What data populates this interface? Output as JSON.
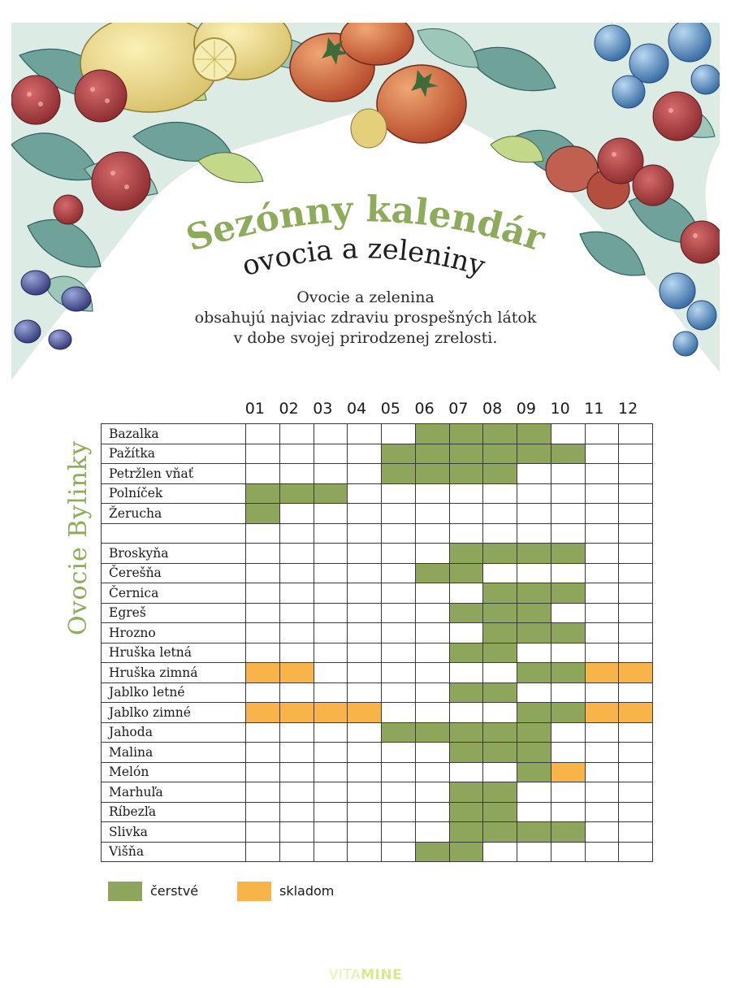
{
  "header": {
    "title_line1": "Sezónny kalendár",
    "title_line2": "ovocia a zeleniny",
    "intro": [
      "Ovocie a zelenina",
      "obsahujú najviac zdraviu prospešných látok",
      "v dobe svojej prirodzenej zrelosti."
    ]
  },
  "colors": {
    "fresh": "#8ea65c",
    "stored": "#f8b448",
    "accent_title": "#8eab5c"
  },
  "calendar": {
    "side_label": "Ovocie  Bylinky",
    "months": [
      "01",
      "02",
      "03",
      "04",
      "05",
      "06",
      "07",
      "08",
      "09",
      "10",
      "11",
      "12"
    ],
    "legend_codes": "f = čerstvé, s = skladom, 0 = prázdne",
    "rows": [
      {
        "name": "Bazalka",
        "months": [
          "0",
          "0",
          "0",
          "0",
          "0",
          "f",
          "f",
          "f",
          "f",
          "0",
          "0",
          "0"
        ]
      },
      {
        "name": "Pažítka",
        "months": [
          "0",
          "0",
          "0",
          "0",
          "f",
          "f",
          "f",
          "f",
          "f",
          "f",
          "0",
          "0"
        ]
      },
      {
        "name": "Petržlen vňať",
        "months": [
          "0",
          "0",
          "0",
          "0",
          "f",
          "f",
          "f",
          "f",
          "0",
          "0",
          "0",
          "0"
        ]
      },
      {
        "name": "Polníček",
        "months": [
          "f",
          "f",
          "f",
          "0",
          "0",
          "0",
          "0",
          "0",
          "0",
          "0",
          "0",
          "0"
        ]
      },
      {
        "name": "Žerucha",
        "months": [
          "f",
          "0",
          "0",
          "0",
          "0",
          "0",
          "0",
          "0",
          "0",
          "0",
          "0",
          "0"
        ]
      },
      {
        "name": "",
        "months": [
          "0",
          "0",
          "0",
          "0",
          "0",
          "0",
          "0",
          "0",
          "0",
          "0",
          "0",
          "0"
        ]
      },
      {
        "name": "Broskyňa",
        "months": [
          "0",
          "0",
          "0",
          "0",
          "0",
          "0",
          "f",
          "f",
          "f",
          "f",
          "0",
          "0"
        ]
      },
      {
        "name": "Čerešňa",
        "months": [
          "0",
          "0",
          "0",
          "0",
          "0",
          "f",
          "f",
          "0",
          "0",
          "0",
          "0",
          "0"
        ]
      },
      {
        "name": "Černica",
        "months": [
          "0",
          "0",
          "0",
          "0",
          "0",
          "0",
          "0",
          "f",
          "f",
          "f",
          "0",
          "0"
        ]
      },
      {
        "name": "Egreš",
        "months": [
          "0",
          "0",
          "0",
          "0",
          "0",
          "0",
          "f",
          "f",
          "f",
          "0",
          "0",
          "0"
        ]
      },
      {
        "name": "Hrozno",
        "months": [
          "0",
          "0",
          "0",
          "0",
          "0",
          "0",
          "0",
          "f",
          "f",
          "f",
          "0",
          "0"
        ]
      },
      {
        "name": "Hruška letná",
        "months": [
          "0",
          "0",
          "0",
          "0",
          "0",
          "0",
          "f",
          "f",
          "0",
          "0",
          "0",
          "0"
        ]
      },
      {
        "name": "Hruška zimná",
        "months": [
          "s",
          "s",
          "0",
          "0",
          "0",
          "0",
          "0",
          "0",
          "f",
          "f",
          "s",
          "s"
        ]
      },
      {
        "name": "Jablko letné",
        "months": [
          "0",
          "0",
          "0",
          "0",
          "0",
          "0",
          "f",
          "f",
          "0",
          "0",
          "0",
          "0"
        ]
      },
      {
        "name": "Jablko zimné",
        "months": [
          "s",
          "s",
          "s",
          "s",
          "0",
          "0",
          "0",
          "0",
          "f",
          "f",
          "s",
          "s"
        ]
      },
      {
        "name": "Jahoda",
        "months": [
          "0",
          "0",
          "0",
          "0",
          "f",
          "f",
          "f",
          "f",
          "f",
          "0",
          "0",
          "0"
        ]
      },
      {
        "name": "Malina",
        "months": [
          "0",
          "0",
          "0",
          "0",
          "0",
          "0",
          "f",
          "f",
          "f",
          "0",
          "0",
          "0"
        ]
      },
      {
        "name": "Melón",
        "months": [
          "0",
          "0",
          "0",
          "0",
          "0",
          "0",
          "0",
          "0",
          "f",
          "s",
          "0",
          "0"
        ]
      },
      {
        "name": "Marhuľa",
        "months": [
          "0",
          "0",
          "0",
          "0",
          "0",
          "0",
          "f",
          "f",
          "0",
          "0",
          "0",
          "0"
        ]
      },
      {
        "name": "Ríbezľa",
        "months": [
          "0",
          "0",
          "0",
          "0",
          "0",
          "0",
          "f",
          "f",
          "0",
          "0",
          "0",
          "0"
        ]
      },
      {
        "name": "Slivka",
        "months": [
          "0",
          "0",
          "0",
          "0",
          "0",
          "0",
          "f",
          "f",
          "f",
          "f",
          "0",
          "0"
        ]
      },
      {
        "name": "Višňa",
        "months": [
          "0",
          "0",
          "0",
          "0",
          "0",
          "f",
          "f",
          "0",
          "0",
          "0",
          "0",
          "0"
        ]
      }
    ]
  },
  "legend": {
    "fresh_label": "čerstvé",
    "stored_label": "skladom"
  },
  "footer": {
    "logo_part1": "VITA",
    "logo_part2": "MINE"
  }
}
